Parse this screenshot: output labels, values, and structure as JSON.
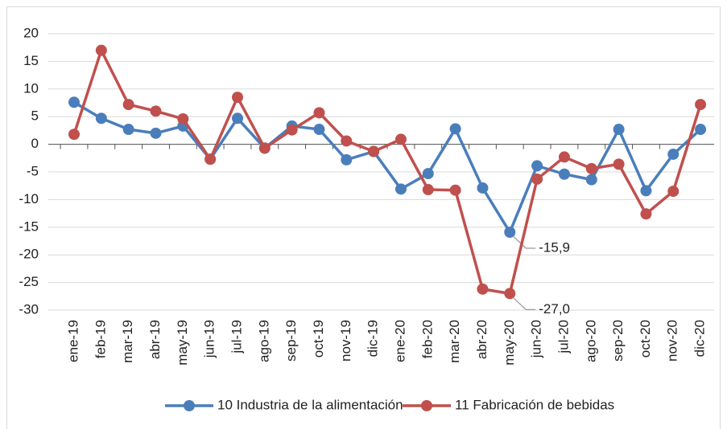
{
  "chart_data": {
    "type": "line",
    "categories": [
      "ene-19",
      "feb-19",
      "mar-19",
      "abr-19",
      "may-19",
      "jun-19",
      "jul-19",
      "ago-19",
      "sep-19",
      "oct-19",
      "nov-19",
      "dic-19",
      "ene-20",
      "feb-20",
      "mar-20",
      "abr-20",
      "may-20",
      "jun-20",
      "jul-20",
      "ago-20",
      "sep-20",
      "oct-20",
      "nov-20",
      "dic-20"
    ],
    "series": [
      {
        "name": "10 Industria de la alimentación",
        "color": "#4a7ebb",
        "values": [
          7.6,
          4.7,
          2.7,
          2.0,
          3.3,
          -2.7,
          4.7,
          -0.7,
          3.3,
          2.7,
          -2.8,
          -1.3,
          -8.1,
          -5.3,
          2.8,
          -7.9,
          -15.9,
          -3.9,
          -5.4,
          -6.4,
          2.7,
          -8.4,
          -1.8,
          2.7
        ],
        "value_labels": [
          null,
          null,
          null,
          null,
          null,
          null,
          null,
          null,
          null,
          null,
          null,
          null,
          null,
          null,
          null,
          null,
          "-15,9",
          null,
          null,
          null,
          null,
          null,
          null,
          null
        ]
      },
      {
        "name": "11 Fabricación de bebidas",
        "color": "#c0504d",
        "values": [
          1.8,
          17.0,
          7.2,
          6.0,
          4.6,
          -2.7,
          8.5,
          -0.7,
          2.6,
          5.7,
          0.6,
          -1.3,
          0.9,
          -8.2,
          -8.3,
          -26.2,
          -27.0,
          -6.3,
          -2.3,
          -4.4,
          -3.6,
          -12.6,
          -8.5,
          7.2
        ],
        "value_labels": [
          null,
          null,
          null,
          null,
          null,
          null,
          null,
          null,
          null,
          null,
          null,
          null,
          null,
          null,
          null,
          null,
          "-27,0",
          null,
          null,
          null,
          null,
          null,
          null,
          null
        ]
      }
    ],
    "ylim": [
      -30,
      20
    ],
    "yticks": [
      -30,
      -25,
      -20,
      -15,
      -10,
      -5,
      0,
      5,
      10,
      15,
      20
    ],
    "grid": true,
    "legend": "bottom"
  }
}
